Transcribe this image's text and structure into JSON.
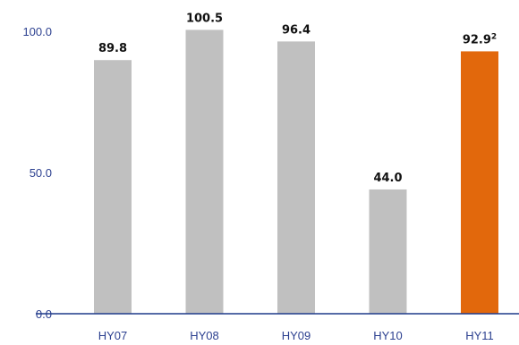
{
  "chart_data": {
    "type": "bar",
    "categories": [
      "HY07",
      "HY08",
      "HY09",
      "HY10",
      "HY11"
    ],
    "values": [
      89.8,
      100.5,
      96.4,
      44.0,
      92.9
    ],
    "data_labels": [
      "89.8",
      "100.5",
      "96.4",
      "44.0",
      "92.9"
    ],
    "label_superscripts": [
      "",
      "",
      "",
      "",
      "2"
    ],
    "highlight_index": 4,
    "ylim": [
      0,
      100
    ],
    "yticks": [
      "0.0",
      "50.0",
      "100.0"
    ],
    "ytick_values": [
      0,
      50,
      100
    ],
    "grid": false,
    "colors": {
      "bar": "#c0c0c0",
      "highlight": "#e2680c",
      "axis": "#1f3a8a",
      "tick_text": "#2b3f8f",
      "label_text": "#111111"
    },
    "title": "",
    "xlabel": "",
    "ylabel": ""
  }
}
